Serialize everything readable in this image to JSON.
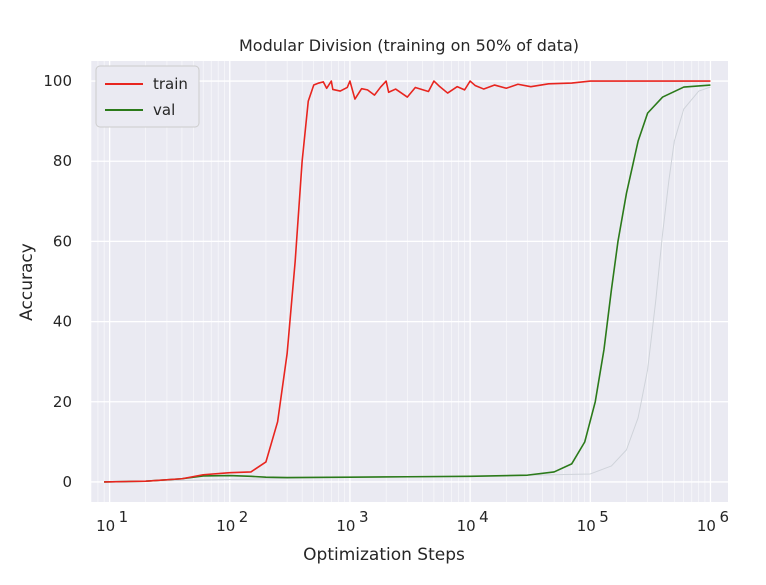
{
  "chart_data": {
    "type": "line",
    "title": "Modular Division (training on 50% of data)",
    "xlabel": "Optimization Steps",
    "ylabel": "Accuracy",
    "x_scale": "log",
    "xlim": [
      7,
      1400000
    ],
    "ylim": [
      -5,
      105
    ],
    "x_ticks": [
      {
        "value": 10,
        "base": "10",
        "exp": "1"
      },
      {
        "value": 100,
        "base": "10",
        "exp": "2"
      },
      {
        "value": 1000,
        "base": "10",
        "exp": "3"
      },
      {
        "value": 10000,
        "base": "10",
        "exp": "4"
      },
      {
        "value": 100000,
        "base": "10",
        "exp": "5"
      },
      {
        "value": 1000000,
        "base": "10",
        "exp": "6"
      }
    ],
    "y_ticks": [
      0,
      20,
      40,
      60,
      80,
      100
    ],
    "grid": true,
    "legend_position": "top-left",
    "series": [
      {
        "name": "train",
        "color": "#e8251f",
        "x": [
          9,
          20,
          40,
          60,
          100,
          150,
          200,
          250,
          300,
          350,
          400,
          450,
          500,
          550,
          600,
          700,
          1000,
          2000,
          5000,
          10000,
          100000,
          1000000
        ],
        "y": [
          0,
          0.2,
          0.8,
          1.8,
          2.3,
          2.5,
          5,
          15,
          32,
          55,
          80,
          95,
          99,
          99.5,
          99.8,
          100,
          100,
          100,
          100,
          100,
          100,
          100
        ]
      },
      {
        "name": "val",
        "color": "#2b7a1a",
        "x": [
          9,
          20,
          40,
          60,
          100,
          150,
          200,
          300,
          1000,
          3000,
          10000,
          30000,
          50000,
          70000,
          90000,
          110000,
          130000,
          150000,
          170000,
          200000,
          250000,
          300000,
          400000,
          600000,
          1000000
        ],
        "y": [
          0,
          0.2,
          0.8,
          1.5,
          1.6,
          1.4,
          1.2,
          1.1,
          1.2,
          1.3,
          1.4,
          1.7,
          2.5,
          4.5,
          10,
          20,
          33,
          48,
          60,
          72,
          85,
          92,
          96,
          98.5,
          99
        ]
      },
      {
        "name": "",
        "color": "#cfd3da",
        "x": [
          9,
          1000,
          10000,
          100000,
          150000,
          200000,
          250000,
          300000,
          350000,
          400000,
          450000,
          500000,
          600000,
          800000,
          1000000
        ],
        "y": [
          0,
          1.2,
          1.4,
          2,
          4,
          8,
          16,
          28,
          45,
          62,
          75,
          85,
          93,
          97.5,
          98.5
        ]
      }
    ],
    "train_dips": [
      {
        "x": 640,
        "y": 98.2
      },
      {
        "x": 720,
        "y": 97.9
      },
      {
        "x": 830,
        "y": 97.5
      },
      {
        "x": 950,
        "y": 98.4
      },
      {
        "x": 1100,
        "y": 95.5
      },
      {
        "x": 1250,
        "y": 98.1
      },
      {
        "x": 1400,
        "y": 97.8
      },
      {
        "x": 1600,
        "y": 96.5
      },
      {
        "x": 1800,
        "y": 98.5
      },
      {
        "x": 2100,
        "y": 97.2
      },
      {
        "x": 2400,
        "y": 98.0
      },
      {
        "x": 3000,
        "y": 96.0
      },
      {
        "x": 3500,
        "y": 98.4
      },
      {
        "x": 4500,
        "y": 97.4
      },
      {
        "x": 5500,
        "y": 98.8
      },
      {
        "x": 6500,
        "y": 97.0
      },
      {
        "x": 7800,
        "y": 98.6
      },
      {
        "x": 9000,
        "y": 97.8
      },
      {
        "x": 11000,
        "y": 98.9
      },
      {
        "x": 13000,
        "y": 98.0
      },
      {
        "x": 16000,
        "y": 99.0
      },
      {
        "x": 20000,
        "y": 98.2
      },
      {
        "x": 25000,
        "y": 99.2
      },
      {
        "x": 32000,
        "y": 98.6
      },
      {
        "x": 45000,
        "y": 99.3
      },
      {
        "x": 70000,
        "y": 99.5
      }
    ]
  }
}
